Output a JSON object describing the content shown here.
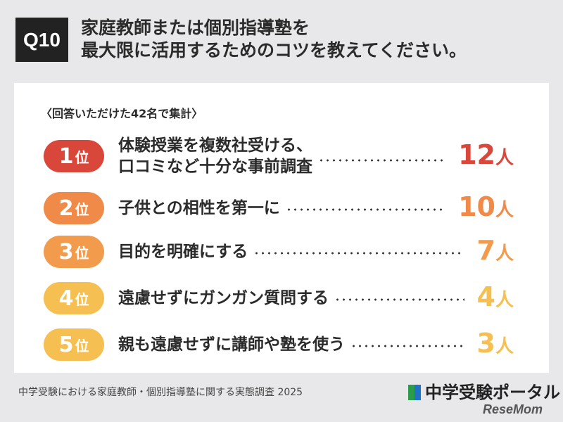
{
  "header": {
    "badge": "Q10",
    "title_lines": [
      "家庭教師または個別指導塾を",
      "最大限に活用するためのコツを教えてください。"
    ]
  },
  "note": "〈回答いただけた42名で集計〉",
  "items": [
    {
      "rank": "1",
      "rank_unit": "位",
      "text_lines": [
        "体験授業を複数社受ける、",
        "口コミなど十分な事前調査"
      ],
      "count": "12",
      "count_unit": "人",
      "color": "#d9473a"
    },
    {
      "rank": "2",
      "rank_unit": "位",
      "text_lines": [
        "子供との相性を第一に"
      ],
      "count": "10",
      "count_unit": "人",
      "color": "#ef8a48"
    },
    {
      "rank": "3",
      "rank_unit": "位",
      "text_lines": [
        "目的を明確にする"
      ],
      "count": "7",
      "count_unit": "人",
      "color": "#f29b4c"
    },
    {
      "rank": "4",
      "rank_unit": "位",
      "text_lines": [
        "遠慮せずにガンガン質問する"
      ],
      "count": "4",
      "count_unit": "人",
      "color": "#f5bf52"
    },
    {
      "rank": "5",
      "rank_unit": "位",
      "text_lines": [
        "親も遠慮せずに講師や塾を使う"
      ],
      "count": "3",
      "count_unit": "人",
      "color": "#f5bf52"
    }
  ],
  "footer": {
    "source": "中学受験における家庭教師・個別指導塾に関する実態調査 2025",
    "logo": "中学受験ポータル",
    "watermark": "ReseMom"
  }
}
